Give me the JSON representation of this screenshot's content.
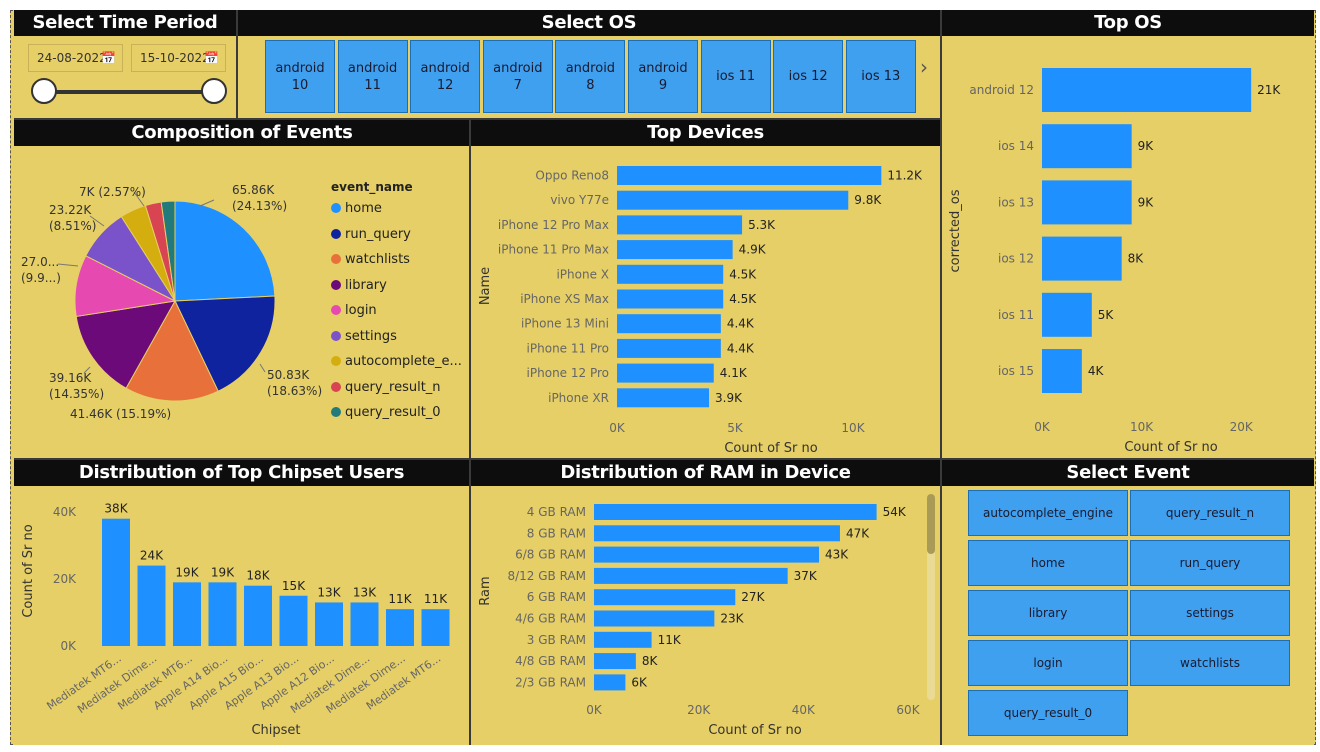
{
  "time_period": {
    "title": "Select Time Period",
    "start_date": "24-08-2022",
    "end_date": "15-10-2022"
  },
  "select_os": {
    "title": "Select OS",
    "options": [
      {
        "line1": "android",
        "line2": "10"
      },
      {
        "line1": "android",
        "line2": "11"
      },
      {
        "line1": "android",
        "line2": "12"
      },
      {
        "line1": "android",
        "line2": "7"
      },
      {
        "line1": "android",
        "line2": "8"
      },
      {
        "line1": "android",
        "line2": "9"
      },
      {
        "line1": "ios 11",
        "line2": ""
      },
      {
        "line1": "ios 12",
        "line2": ""
      },
      {
        "line1": "ios 13",
        "line2": ""
      }
    ],
    "next_icon": "chevron-right-icon"
  },
  "top_os": {
    "title": "Top OS",
    "ylabel": "corrected_os",
    "xlabel": "Count of Sr no",
    "ticks": [
      "0K",
      "10K",
      "20K"
    ]
  },
  "composition": {
    "title": "Composition of Events",
    "legend_title": "event_name"
  },
  "top_devices": {
    "title": "Top Devices",
    "ylabel": "Name",
    "xlabel": "Count of Sr no",
    "ticks": [
      "0K",
      "5K",
      "10K"
    ]
  },
  "chipset": {
    "title": "Distribution of Top Chipset Users",
    "ylabel": "Count of Sr no",
    "xlabel": "Chipset",
    "ticks": [
      "0K",
      "20K",
      "40K"
    ]
  },
  "ram": {
    "title": "Distribution of RAM in Device",
    "ylabel": "Ram",
    "xlabel": "Count of Sr no",
    "ticks": [
      "0K",
      "20K",
      "40K",
      "60K"
    ]
  },
  "select_event": {
    "title": "Select Event",
    "options": [
      "autocomplete_engine",
      "query_result_n",
      "home",
      "run_query",
      "library",
      "settings",
      "login",
      "watchlists",
      "query_result_0"
    ]
  },
  "colors": {
    "bar": "#1e90ff",
    "title_bg": "#0d0d0d",
    "panel_bg": "#e6cf66",
    "button_bg": "#3fa0f0"
  },
  "chart_data": [
    {
      "id": "top_os",
      "type": "bar",
      "orientation": "horizontal",
      "title": "Top OS",
      "xlabel": "Count of Sr no",
      "ylabel": "corrected_os",
      "categories": [
        "android 12",
        "ios 14",
        "ios 13",
        "ios 12",
        "ios 11",
        "ios 15"
      ],
      "values": [
        21000,
        9000,
        9000,
        8000,
        5000,
        4000
      ],
      "labels": [
        "21K",
        "9K",
        "9K",
        "8K",
        "5K",
        "4K"
      ],
      "xlim": [
        0,
        25000
      ]
    },
    {
      "id": "composition",
      "type": "pie",
      "title": "Composition of Events",
      "legend_title": "event_name",
      "legend_position": "right",
      "slices": [
        {
          "name": "home",
          "value": 65.86,
          "label": "65.86K",
          "pct": "(24.13%)",
          "color": "#1e90ff"
        },
        {
          "name": "run_query",
          "value": 50.83,
          "label": "50.83K",
          "pct": "(18.63%)",
          "color": "#10239e"
        },
        {
          "name": "watchlists",
          "value": 41.46,
          "label": "41.46K (15.19%)",
          "pct": "",
          "color": "#e8703a"
        },
        {
          "name": "library",
          "value": 39.16,
          "label": "39.16K",
          "pct": "(14.35%)",
          "color": "#6b0a78"
        },
        {
          "name": "login",
          "value": 27.0,
          "label": "27.0...",
          "pct": "(9.9...)",
          "color": "#e64ab0"
        },
        {
          "name": "settings",
          "value": 23.22,
          "label": "23.22K",
          "pct": "(8.51%)",
          "color": "#7a52c9"
        },
        {
          "name": "autocomplete_e...",
          "value": 11.5,
          "label": "",
          "pct": "",
          "color": "#d4ad0e"
        },
        {
          "name": "query_result_n",
          "value": 7.0,
          "label": "7K (2.57%)",
          "pct": "",
          "color": "#d94452"
        },
        {
          "name": "query_result_0",
          "value": 6.0,
          "label": "",
          "pct": "",
          "color": "#237a7a"
        }
      ]
    },
    {
      "id": "top_devices",
      "type": "bar",
      "orientation": "horizontal",
      "title": "Top Devices",
      "xlabel": "Count of Sr no",
      "ylabel": "Name",
      "categories": [
        "Oppo Reno8",
        "vivo Y77e",
        "iPhone 12 Pro Max",
        "iPhone 11 Pro Max",
        "iPhone X",
        "iPhone XS Max",
        "iPhone 13 Mini",
        "iPhone 11 Pro",
        "iPhone 12 Pro",
        "iPhone XR"
      ],
      "values": [
        11200,
        9800,
        5300,
        4900,
        4500,
        4500,
        4400,
        4400,
        4100,
        3900
      ],
      "labels": [
        "11.2K",
        "9.8K",
        "5.3K",
        "4.9K",
        "4.5K",
        "4.5K",
        "4.4K",
        "4.4K",
        "4.1K",
        "3.9K"
      ],
      "xlim": [
        0,
        12500
      ]
    },
    {
      "id": "chipset",
      "type": "bar",
      "orientation": "vertical",
      "title": "Distribution of Top Chipset Users",
      "xlabel": "Chipset",
      "ylabel": "Count of Sr no",
      "categories": [
        "Mediatek MT6...",
        "Mediatek Dime...",
        "Mediatek MT6...",
        "Apple A14 Bio...",
        "Apple A15 Bio...",
        "Apple A13 Bio...",
        "Apple A12 Bio...",
        "Mediatek Dime...",
        "Mediatek Dime...",
        "Mediatek MT6..."
      ],
      "values": [
        38000,
        24000,
        19000,
        19000,
        18000,
        15000,
        13000,
        13000,
        11000,
        11000
      ],
      "labels": [
        "38K",
        "24K",
        "19K",
        "19K",
        "18K",
        "15K",
        "13K",
        "13K",
        "11K",
        "11K"
      ],
      "ylim": [
        0,
        40000
      ]
    },
    {
      "id": "ram",
      "type": "bar",
      "orientation": "horizontal",
      "title": "Distribution of RAM in Device",
      "xlabel": "Count of Sr no",
      "ylabel": "Ram",
      "categories": [
        "4 GB RAM",
        "8 GB RAM",
        "6/8 GB RAM",
        "8/12 GB RAM",
        "6 GB RAM",
        "4/6 GB RAM",
        "3 GB RAM",
        "4/8 GB RAM",
        "2/3 GB RAM"
      ],
      "values": [
        54000,
        47000,
        43000,
        37000,
        27000,
        23000,
        11000,
        8000,
        6000
      ],
      "labels": [
        "54K",
        "47K",
        "43K",
        "37K",
        "27K",
        "23K",
        "11K",
        "8K",
        "6K"
      ],
      "xlim": [
        0,
        60000
      ]
    }
  ]
}
